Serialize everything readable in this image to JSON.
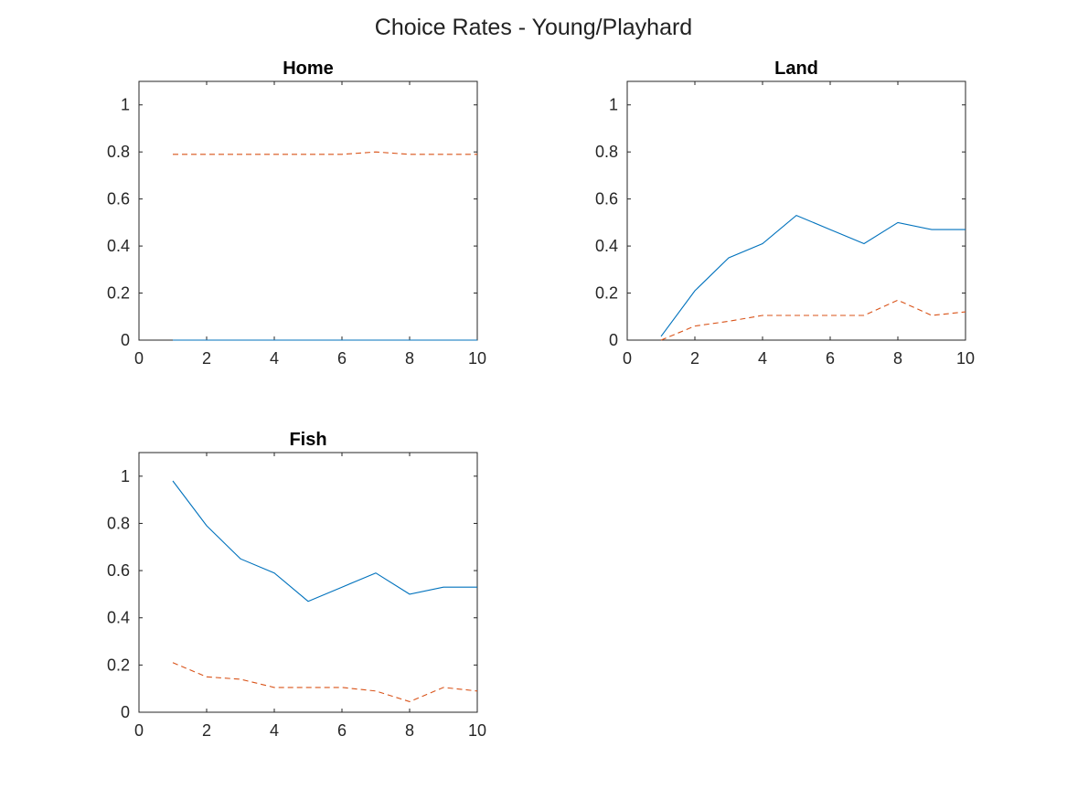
{
  "figure": {
    "title": "Choice Rates - Young/Playhard"
  },
  "colors": {
    "series_solid": "#0072BD",
    "series_dashed": "#D95319",
    "axes": "#262626",
    "background": "#ffffff"
  },
  "chart_data": [
    {
      "type": "line",
      "title": "Home",
      "xlabel": "",
      "ylabel": "",
      "xlim": [
        0,
        10
      ],
      "ylim": [
        0,
        1.1
      ],
      "xticks": [
        0,
        2,
        4,
        6,
        8,
        10
      ],
      "yticks": [
        0,
        0.2,
        0.4,
        0.6,
        0.8,
        1
      ],
      "x": [
        1,
        2,
        3,
        4,
        5,
        6,
        7,
        8,
        9,
        10
      ],
      "series": [
        {
          "style": "solid",
          "color": "#0072BD",
          "values": [
            0,
            0,
            0,
            0,
            0,
            0,
            0,
            0,
            0,
            0
          ]
        },
        {
          "style": "dashed",
          "color": "#D95319",
          "values": [
            0.79,
            0.79,
            0.79,
            0.79,
            0.79,
            0.79,
            0.8,
            0.79,
            0.79,
            0.79
          ]
        }
      ]
    },
    {
      "type": "line",
      "title": "Land",
      "xlabel": "",
      "ylabel": "",
      "xlim": [
        0,
        10
      ],
      "ylim": [
        0,
        1.1
      ],
      "xticks": [
        0,
        2,
        4,
        6,
        8,
        10
      ],
      "yticks": [
        0,
        0.2,
        0.4,
        0.6,
        0.8,
        1
      ],
      "x": [
        1,
        2,
        3,
        4,
        5,
        6,
        7,
        8,
        9,
        10
      ],
      "series": [
        {
          "style": "solid",
          "color": "#0072BD",
          "values": [
            0.016,
            0.21,
            0.35,
            0.41,
            0.53,
            0.47,
            0.41,
            0.5,
            0.47,
            0.47
          ]
        },
        {
          "style": "dashed",
          "color": "#D95319",
          "values": [
            0,
            0.06,
            0.08,
            0.105,
            0.105,
            0.105,
            0.105,
            0.17,
            0.105,
            0.12
          ]
        }
      ]
    },
    {
      "type": "line",
      "title": "Fish",
      "xlabel": "",
      "ylabel": "",
      "xlim": [
        0,
        10
      ],
      "ylim": [
        0,
        1.1
      ],
      "xticks": [
        0,
        2,
        4,
        6,
        8,
        10
      ],
      "yticks": [
        0,
        0.2,
        0.4,
        0.6,
        0.8,
        1
      ],
      "x": [
        1,
        2,
        3,
        4,
        5,
        6,
        7,
        8,
        9,
        10
      ],
      "series": [
        {
          "style": "solid",
          "color": "#0072BD",
          "values": [
            0.98,
            0.79,
            0.65,
            0.59,
            0.47,
            0.53,
            0.59,
            0.5,
            0.53,
            0.53
          ]
        },
        {
          "style": "dashed",
          "color": "#D95319",
          "values": [
            0.21,
            0.15,
            0.14,
            0.105,
            0.105,
            0.105,
            0.09,
            0.045,
            0.105,
            0.09
          ]
        }
      ]
    }
  ]
}
